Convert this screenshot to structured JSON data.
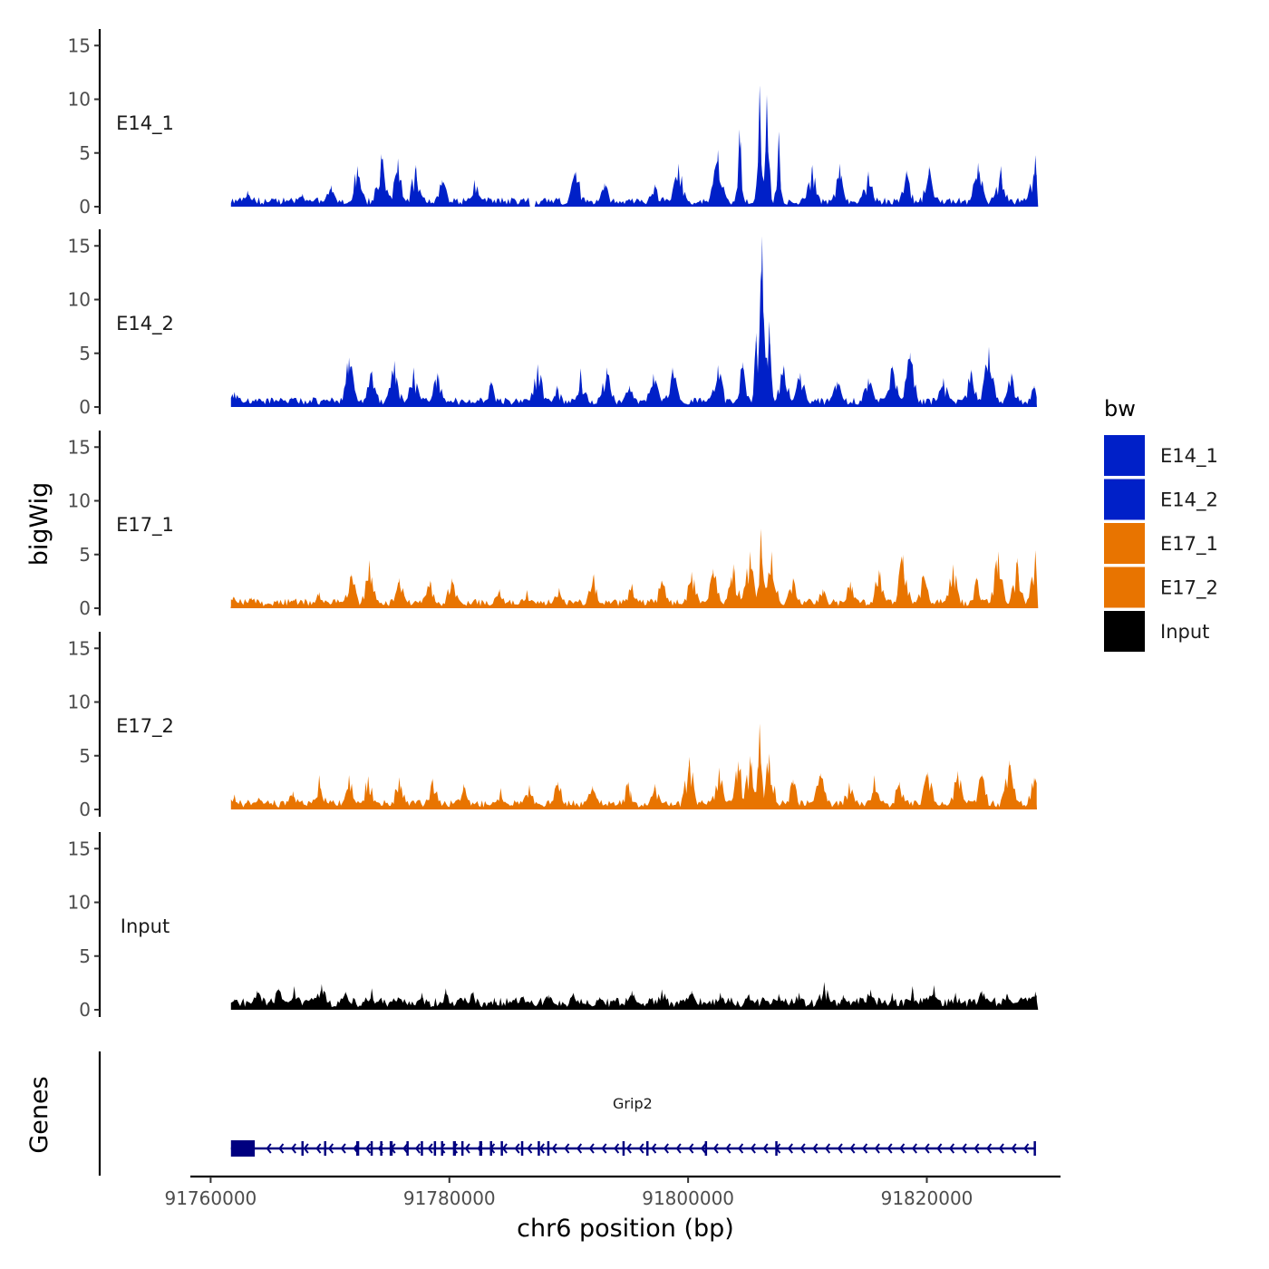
{
  "chart_data": {
    "type": "area",
    "chrom": "chr6",
    "x_axis": {
      "title": "chr6 position (bp)",
      "ticks": [
        91760000,
        91780000,
        91800000,
        91820000
      ],
      "tick_labels": [
        "91760000",
        "91780000",
        "91800000",
        "91820000"
      ],
      "xlim": [
        91758300,
        91831200
      ]
    },
    "y_axis": {
      "title": "bigWig",
      "ticks": [
        0,
        5,
        10,
        15
      ],
      "tick_labels": [
        "0",
        "5",
        "10",
        "15"
      ],
      "ylim": [
        0,
        16
      ]
    },
    "signal_range": [
      91761700,
      91829200
    ],
    "tracks": [
      {
        "name": "E14_1",
        "color": "#0020C8",
        "peaks": [
          [
            91763100,
            1.5
          ],
          [
            91765100,
            0.8
          ],
          [
            91767700,
            1.2
          ],
          [
            91770100,
            2.0
          ],
          [
            91772300,
            3.8
          ],
          [
            91774300,
            4.9
          ],
          [
            91775700,
            4.5
          ],
          [
            91777200,
            3.9
          ],
          [
            91779400,
            2.5
          ],
          [
            91782100,
            2.5
          ],
          [
            91790600,
            3.3
          ],
          [
            91793000,
            2.2
          ],
          [
            91797200,
            2.1
          ],
          [
            91799200,
            4.0
          ],
          [
            91802500,
            5.3
          ],
          [
            91804300,
            7.2
          ],
          [
            91806000,
            11.3
          ],
          [
            91806600,
            10.4
          ],
          [
            91807600,
            7.0
          ],
          [
            91810400,
            3.9
          ],
          [
            91812700,
            4.0
          ],
          [
            91815100,
            3.3
          ],
          [
            91818300,
            3.4
          ],
          [
            91820200,
            3.8
          ],
          [
            91824300,
            4.1
          ],
          [
            91826200,
            3.8
          ],
          [
            91829100,
            4.8
          ]
        ],
        "gaps": [
          [
            91786700,
            91787200
          ]
        ]
      },
      {
        "name": "E14_2",
        "color": "#0020C8",
        "peaks": [
          [
            91762000,
            1.4
          ],
          [
            91764100,
            0.8
          ],
          [
            91766800,
            0.9
          ],
          [
            91771600,
            4.6
          ],
          [
            91773500,
            3.4
          ],
          [
            91775400,
            4.3
          ],
          [
            91777000,
            3.7
          ],
          [
            91779000,
            3.2
          ],
          [
            91783500,
            2.4
          ],
          [
            91787400,
            4.0
          ],
          [
            91789000,
            2.0
          ],
          [
            91791000,
            3.6
          ],
          [
            91793200,
            3.7
          ],
          [
            91795100,
            2.0
          ],
          [
            91797100,
            3.1
          ],
          [
            91798700,
            3.7
          ],
          [
            91802500,
            3.9
          ],
          [
            91804600,
            4.2
          ],
          [
            91805700,
            6.9
          ],
          [
            91806200,
            15.9
          ],
          [
            91806800,
            8.0
          ],
          [
            91808000,
            3.9
          ],
          [
            91809400,
            3.2
          ],
          [
            91812500,
            2.4
          ],
          [
            91815100,
            2.7
          ],
          [
            91817100,
            3.9
          ],
          [
            91818600,
            5.1
          ],
          [
            91821400,
            2.7
          ],
          [
            91823700,
            3.5
          ],
          [
            91825200,
            5.6
          ],
          [
            91827100,
            3.2
          ],
          [
            91829000,
            2.0
          ]
        ],
        "gaps": []
      },
      {
        "name": "E17_1",
        "color": "#E87400",
        "peaks": [
          [
            91761900,
            1.1
          ],
          [
            91763400,
            1.0
          ],
          [
            91766900,
            0.8
          ],
          [
            91769100,
            1.5
          ],
          [
            91771800,
            3.2
          ],
          [
            91773300,
            4.5
          ],
          [
            91775800,
            2.8
          ],
          [
            91778400,
            2.6
          ],
          [
            91780200,
            2.8
          ],
          [
            91784200,
            1.8
          ],
          [
            91786500,
            1.7
          ],
          [
            91789200,
            1.9
          ],
          [
            91792100,
            3.2
          ],
          [
            91795300,
            2.3
          ],
          [
            91797800,
            2.6
          ],
          [
            91800300,
            3.4
          ],
          [
            91802100,
            3.7
          ],
          [
            91803800,
            4.1
          ],
          [
            91805200,
            5.3
          ],
          [
            91806100,
            7.4
          ],
          [
            91807000,
            5.3
          ],
          [
            91808800,
            2.8
          ],
          [
            91811300,
            1.8
          ],
          [
            91813600,
            2.5
          ],
          [
            91816000,
            3.6
          ],
          [
            91818000,
            5.0
          ],
          [
            91819700,
            3.1
          ],
          [
            91822200,
            4.1
          ],
          [
            91824200,
            2.9
          ],
          [
            91826000,
            5.3
          ],
          [
            91827600,
            4.7
          ],
          [
            91829100,
            5.4
          ]
        ],
        "gaps": []
      },
      {
        "name": "E17_2",
        "color": "#E87400",
        "peaks": [
          [
            91762000,
            1.4
          ],
          [
            91764000,
            1.1
          ],
          [
            91766900,
            1.7
          ],
          [
            91769100,
            3.2
          ],
          [
            91771600,
            3.2
          ],
          [
            91773200,
            3.1
          ],
          [
            91775800,
            3.0
          ],
          [
            91778600,
            2.9
          ],
          [
            91781200,
            2.4
          ],
          [
            91784300,
            2.0
          ],
          [
            91786700,
            2.3
          ],
          [
            91789100,
            2.6
          ],
          [
            91792000,
            2.2
          ],
          [
            91795000,
            2.6
          ],
          [
            91797200,
            2.4
          ],
          [
            91800100,
            4.9
          ],
          [
            91802600,
            3.9
          ],
          [
            91804200,
            4.5
          ],
          [
            91805200,
            5.0
          ],
          [
            91806000,
            8.0
          ],
          [
            91806800,
            5.2
          ],
          [
            91808800,
            2.8
          ],
          [
            91811100,
            3.4
          ],
          [
            91813500,
            2.5
          ],
          [
            91815600,
            3.2
          ],
          [
            91817700,
            2.6
          ],
          [
            91820100,
            3.5
          ],
          [
            91822600,
            3.6
          ],
          [
            91824600,
            3.3
          ],
          [
            91826900,
            4.6
          ],
          [
            91829000,
            3.0
          ]
        ],
        "gaps": [
          [
            91795000,
            91795100
          ]
        ]
      },
      {
        "name": "Input",
        "color": "#000000",
        "peaks": [
          [
            91762000,
            1.0
          ],
          [
            91763900,
            1.8
          ],
          [
            91765700,
            2.0
          ],
          [
            91767000,
            2.2
          ],
          [
            91769300,
            2.4
          ],
          [
            91771300,
            1.7
          ],
          [
            91773500,
            2.0
          ],
          [
            91775700,
            1.2
          ],
          [
            91777700,
            1.6
          ],
          [
            91779700,
            2.0
          ],
          [
            91782000,
            1.7
          ],
          [
            91783900,
            0.8
          ],
          [
            91786200,
            1.3
          ],
          [
            91788300,
            1.4
          ],
          [
            91790400,
            1.6
          ],
          [
            91792600,
            1.2
          ],
          [
            91795300,
            1.8
          ],
          [
            91797800,
            1.9
          ],
          [
            91800300,
            1.8
          ],
          [
            91802700,
            1.6
          ],
          [
            91805100,
            1.5
          ],
          [
            91807600,
            1.5
          ],
          [
            91809300,
            1.6
          ],
          [
            91811400,
            2.6
          ],
          [
            91813000,
            1.4
          ],
          [
            91815300,
            1.9
          ],
          [
            91817100,
            1.6
          ],
          [
            91818800,
            2.2
          ],
          [
            91820600,
            2.3
          ],
          [
            91822400,
            1.6
          ],
          [
            91824600,
            1.8
          ],
          [
            91826700,
            1.5
          ],
          [
            91829100,
            1.7
          ]
        ],
        "gaps": []
      }
    ],
    "gene_track": {
      "title": "Genes",
      "gene_name": "Grip2",
      "color": "#000080",
      "strand": "-",
      "start": 91761700,
      "end": 91829000,
      "exons": [
        [
          91761700,
          91763700
        ],
        [
          91767600,
          91767650
        ],
        [
          91769500,
          91769550
        ],
        [
          91772200,
          91772450
        ],
        [
          91773400,
          91773550
        ],
        [
          91774200,
          91774250
        ],
        [
          91775000,
          91775250
        ],
        [
          91776400,
          91776450
        ],
        [
          91777600,
          91777700
        ],
        [
          91778700,
          91778750
        ],
        [
          91779300,
          91779350
        ],
        [
          91780300,
          91780550
        ],
        [
          91781000,
          91781050
        ],
        [
          91782500,
          91782750
        ],
        [
          91783400,
          91783450
        ],
        [
          91784300,
          91784350
        ],
        [
          91786000,
          91786050
        ],
        [
          91787400,
          91787450
        ],
        [
          91788200,
          91788300
        ],
        [
          91794500,
          91794520
        ],
        [
          91796500,
          91796550
        ],
        [
          91801400,
          91801450
        ],
        [
          91807300,
          91807400
        ],
        [
          91828950,
          91829000
        ]
      ]
    },
    "legend": {
      "title": "bw",
      "position": "right",
      "entries": [
        {
          "label": "E14_1",
          "color": "#0020C8"
        },
        {
          "label": "E14_2",
          "color": "#0020C8"
        },
        {
          "label": "E17_1",
          "color": "#E87400"
        },
        {
          "label": "E17_2",
          "color": "#E87400"
        },
        {
          "label": "Input",
          "color": "#000000"
        }
      ]
    }
  }
}
